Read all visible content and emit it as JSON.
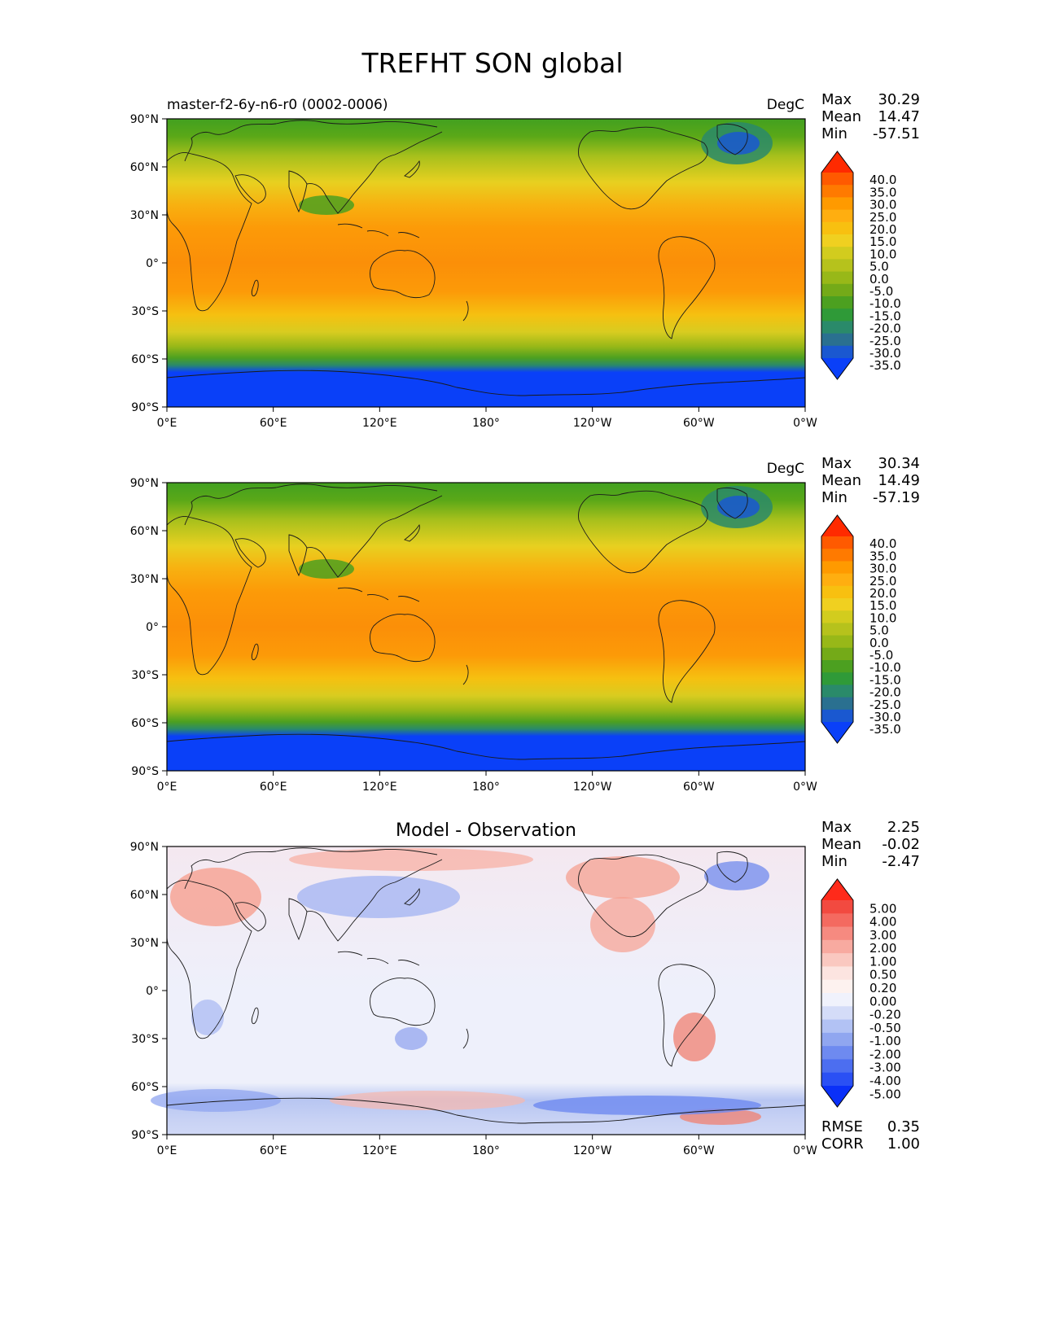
{
  "title": "TREFHT SON global",
  "panels": [
    {
      "subtitle_left": "master-f2-6y-n6-r0 (0002-0006)",
      "subtitle_center": "",
      "units": "DegC",
      "stats": [
        {
          "label": "Max",
          "value": "30.29"
        },
        {
          "label": "Mean",
          "value": "14.47"
        },
        {
          "label": "Min",
          "value": "-57.51"
        }
      ],
      "colorbar_labels": [
        "40.0",
        "35.0",
        "30.0",
        "25.0",
        "20.0",
        "15.0",
        "10.0",
        "5.0",
        "0.0",
        "-5.0",
        "-10.0",
        "-15.0",
        "-20.0",
        "-25.0",
        "-30.0",
        "-35.0"
      ],
      "colorbar_colors": [
        "#ff2a00",
        "#ff5a00",
        "#ff7a00",
        "#ff9a00",
        "#ffae10",
        "#f8c010",
        "#f0d020",
        "#d2cc1e",
        "#b6c21c",
        "#98b818",
        "#74aa18",
        "#4ca020",
        "#2f9a38",
        "#2a8a6a",
        "#2a7090",
        "#1a58d0",
        "#0a40f8"
      ],
      "colorbar_extend": "both"
    },
    {
      "subtitle_left": "",
      "subtitle_center": "",
      "units": "DegC",
      "stats": [
        {
          "label": "Max",
          "value": "30.34"
        },
        {
          "label": "Mean",
          "value": "14.49"
        },
        {
          "label": "Min",
          "value": "-57.19"
        }
      ],
      "colorbar_labels": [
        "40.0",
        "35.0",
        "30.0",
        "25.0",
        "20.0",
        "15.0",
        "10.0",
        "5.0",
        "0.0",
        "-5.0",
        "-10.0",
        "-15.0",
        "-20.0",
        "-25.0",
        "-30.0",
        "-35.0"
      ],
      "colorbar_colors": [
        "#ff2a00",
        "#ff5a00",
        "#ff7a00",
        "#ff9a00",
        "#ffae10",
        "#f8c010",
        "#f0d020",
        "#d2cc1e",
        "#b6c21c",
        "#98b818",
        "#74aa18",
        "#4ca020",
        "#2f9a38",
        "#2a8a6a",
        "#2a7090",
        "#1a58d0",
        "#0a40f8"
      ],
      "colorbar_extend": "both"
    },
    {
      "subtitle_left": "",
      "subtitle_center": "Model - Observation",
      "units": "",
      "stats": [
        {
          "label": "Max",
          "value": "2.25"
        },
        {
          "label": "Mean",
          "value": "-0.02"
        },
        {
          "label": "Min",
          "value": "-2.47"
        }
      ],
      "bottom_stats": [
        {
          "label": "RMSE",
          "value": "0.35"
        },
        {
          "label": "CORR",
          "value": "1.00"
        }
      ],
      "colorbar_labels": [
        "5.00",
        "4.00",
        "3.00",
        "2.00",
        "1.00",
        "0.50",
        "0.20",
        "0.00",
        "-0.20",
        "-0.50",
        "-1.00",
        "-2.00",
        "-3.00",
        "-4.00",
        "-5.00"
      ],
      "colorbar_colors": [
        "#ff2a1a",
        "#f24a40",
        "#f46a60",
        "#f68a80",
        "#f8aaa0",
        "#fac8c0",
        "#fce4e0",
        "#fdf2ef",
        "#f0f2fc",
        "#d4dcf8",
        "#b2c2f4",
        "#90a6f0",
        "#6e8af0",
        "#4c6ef0",
        "#2a50f4",
        "#0a30f8"
      ],
      "colorbar_extend": "both"
    }
  ],
  "x_ticks": [
    "0°E",
    "60°E",
    "120°E",
    "180°",
    "120°W",
    "60°W",
    "0°W"
  ],
  "y_ticks": [
    "90°N",
    "60°N",
    "30°N",
    "0°",
    "30°S",
    "60°S",
    "90°S"
  ]
}
